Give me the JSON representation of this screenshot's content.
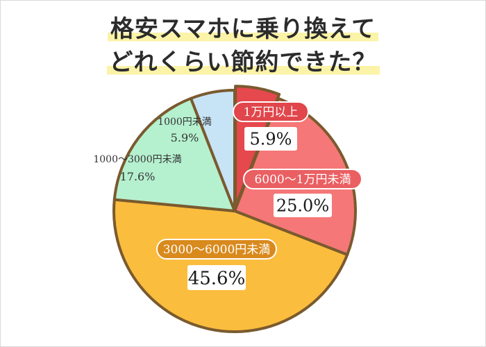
{
  "chart_data": {
    "type": "pie",
    "title_lines": [
      "格安スマホに乗り換えて",
      "どれくらい節約できた？"
    ],
    "slices": [
      {
        "label": "1万円以上",
        "value": 5.9,
        "value_text": "5.9%",
        "color": "#e5484d"
      },
      {
        "label": "6000〜1万円未満",
        "value": 25.0,
        "value_text": "25.0%",
        "color": "#f57777"
      },
      {
        "label": "3000〜6000円未満",
        "value": 45.6,
        "value_text": "45.6%",
        "color": "#fbbd3d"
      },
      {
        "label": "1000〜3000円未満",
        "value": 17.6,
        "value_text": "17.6%",
        "color": "#b5f0cf"
      },
      {
        "label": "1000円未満",
        "value": 5.9,
        "value_text": "5.9%",
        "color": "#c7e3f6"
      }
    ],
    "start_angle": "12 o'clock",
    "direction": "clockwise",
    "exploded_slice": "1万円以上",
    "outline_color": "#7a5a2e"
  }
}
